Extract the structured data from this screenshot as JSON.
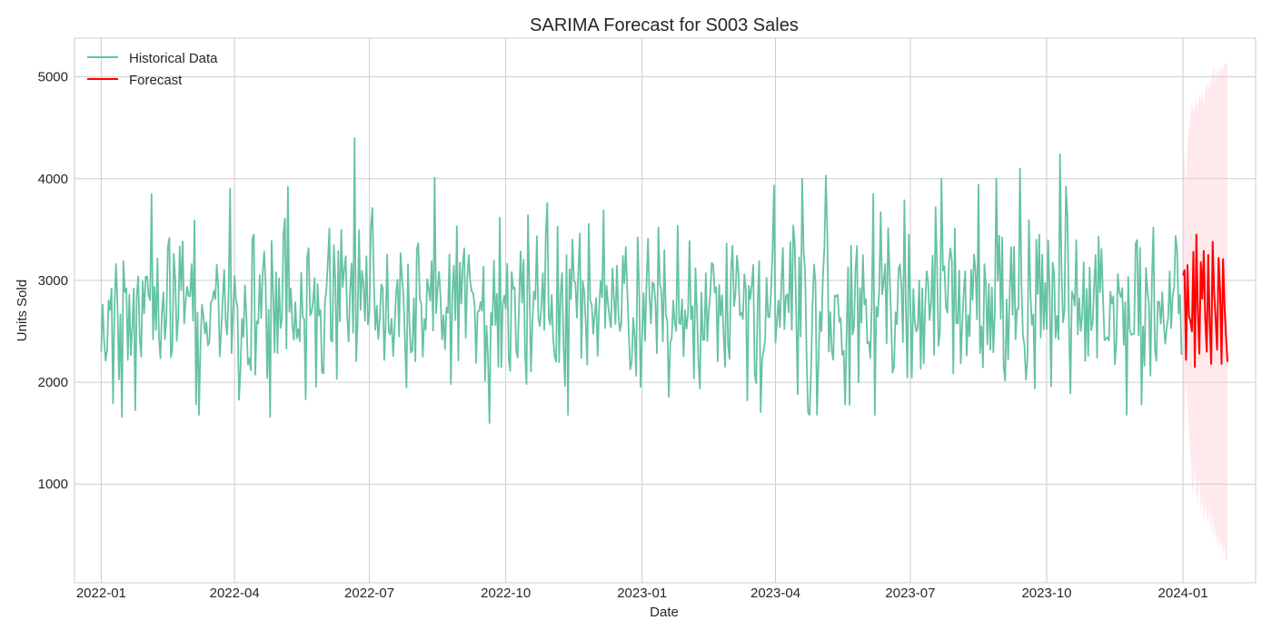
{
  "chart_data": {
    "type": "line",
    "title": "SARIMA Forecast for S003 Sales",
    "xlabel": "Date",
    "ylabel": "Units Sold",
    "x_ticks": [
      "2022-01",
      "2022-04",
      "2022-07",
      "2022-10",
      "2023-01",
      "2023-04",
      "2023-07",
      "2023-10",
      "2024-01"
    ],
    "y_ticks": [
      1000,
      2000,
      3000,
      4000,
      5000
    ],
    "xlim": [
      "2021-12-14",
      "2024-02-19"
    ],
    "ylim": [
      30,
      5380
    ],
    "grid": true,
    "legend_position": "top-left",
    "legend": [
      {
        "name": "Historical Data",
        "color": "#66c2a5"
      },
      {
        "name": "Forecast",
        "color": "#ff0000"
      }
    ],
    "series": [
      {
        "name": "Historical Data",
        "color": "#66c2a5",
        "start": "2022-01-01",
        "end": "2023-12-31",
        "mean": 2750,
        "sd": 460,
        "min": 1600,
        "max": 4400,
        "peaks": [
          {
            "x": "2022-06-21",
            "y": 4400
          },
          {
            "x": "2023-10-10",
            "y": 4240
          },
          {
            "x": "2023-09-13",
            "y": 4100
          },
          {
            "x": "2023-05-05",
            "y": 4030
          },
          {
            "x": "2022-08-14",
            "y": 4010
          },
          {
            "x": "2023-08-16",
            "y": 3940
          },
          {
            "x": "2022-05-07",
            "y": 3920
          },
          {
            "x": "2022-02-04",
            "y": 3850
          },
          {
            "x": "2023-06-06",
            "y": 3850
          }
        ],
        "troughs": [
          {
            "x": "2022-09-20",
            "y": 1600
          },
          {
            "x": "2022-01-15",
            "y": 1660
          },
          {
            "x": "2022-04-25",
            "y": 1660
          },
          {
            "x": "2023-11-24",
            "y": 1680
          },
          {
            "x": "2023-04-23",
            "y": 1700
          }
        ]
      },
      {
        "name": "Forecast",
        "color": "#ff0000",
        "x": [
          "2024-01-01",
          "2024-01-02",
          "2024-01-03",
          "2024-01-04",
          "2024-01-05",
          "2024-01-06",
          "2024-01-07",
          "2024-01-08",
          "2024-01-09",
          "2024-01-10",
          "2024-01-11",
          "2024-01-12",
          "2024-01-13",
          "2024-01-14",
          "2024-01-15",
          "2024-01-16",
          "2024-01-17",
          "2024-01-18",
          "2024-01-19",
          "2024-01-20",
          "2024-01-21",
          "2024-01-22",
          "2024-01-23",
          "2024-01-24",
          "2024-01-25",
          "2024-01-26",
          "2024-01-27",
          "2024-01-28",
          "2024-01-29",
          "2024-01-30",
          "2024-01-31"
        ],
        "values": [
          3050,
          3100,
          2220,
          3150,
          2650,
          2600,
          2500,
          3280,
          2150,
          3450,
          2700,
          2280,
          3180,
          2820,
          3290,
          2620,
          2300,
          3250,
          2580,
          2180,
          3380,
          2880,
          2620,
          2320,
          3220,
          2900,
          2180,
          3210,
          2750,
          2450,
          2200
        ],
        "lower": [
          1000,
          1650,
          2000,
          1800,
          1500,
          1300,
          1000,
          900,
          1200,
          900,
          800,
          1100,
          700,
          900,
          600,
          800,
          700,
          600,
          800,
          500,
          700,
          450,
          600,
          400,
          500,
          350,
          450,
          300,
          400,
          250,
          250
        ],
        "upper": [
          4300,
          4200,
          3900,
          4350,
          4500,
          4600,
          4750,
          4650,
          4700,
          4800,
          4650,
          4850,
          4750,
          4850,
          4700,
          4900,
          4950,
          4850,
          5000,
          4900,
          5050,
          5100,
          4950,
          5050,
          5100,
          5000,
          5100,
          5050,
          5150,
          5100,
          5130
        ]
      }
    ]
  }
}
